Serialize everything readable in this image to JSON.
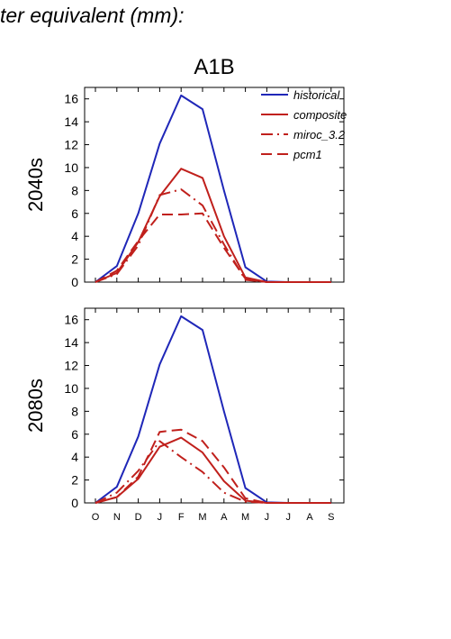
{
  "header": {
    "title": "ter equivalent (mm):"
  },
  "figure": {
    "title": "A1B"
  },
  "colors": {
    "historical": "#1f27b8",
    "future": "#c0201c"
  },
  "legend": [
    "historical",
    "composite",
    "miroc_3.2",
    "pcm1"
  ],
  "chart_data": [
    {
      "type": "line",
      "ylabel": "2040s",
      "categories": [
        "O",
        "N",
        "D",
        "J",
        "F",
        "M",
        "A",
        "M",
        "J",
        "J",
        "A",
        "S"
      ],
      "ylim": [
        0,
        17
      ],
      "yticks": [
        0,
        2,
        4,
        6,
        8,
        10,
        12,
        14,
        16
      ],
      "series": [
        {
          "name": "historical",
          "style": "solid",
          "values": [
            0,
            1.4,
            6.0,
            12.1,
            16.3,
            15.1,
            8.0,
            1.3,
            0.05,
            0,
            0,
            0
          ]
        },
        {
          "name": "composite",
          "style": "solid",
          "values": [
            0,
            0.8,
            3.5,
            7.5,
            9.9,
            9.1,
            4.0,
            0.4,
            0,
            0,
            0,
            0
          ]
        },
        {
          "name": "miroc_3.2",
          "style": "dashdot",
          "values": [
            0,
            0.7,
            3.2,
            7.6,
            8.1,
            6.7,
            3.3,
            0.2,
            0,
            0,
            0,
            0
          ]
        },
        {
          "name": "pcm1",
          "style": "longdash",
          "values": [
            0,
            1.0,
            3.6,
            5.9,
            5.9,
            6.0,
            3.0,
            0.3,
            0,
            0,
            0,
            0
          ]
        }
      ]
    },
    {
      "type": "line",
      "ylabel": "2080s",
      "categories": [
        "O",
        "N",
        "D",
        "J",
        "F",
        "M",
        "A",
        "M",
        "J",
        "J",
        "A",
        "S"
      ],
      "ylim": [
        0,
        17
      ],
      "yticks": [
        0,
        2,
        4,
        6,
        8,
        10,
        12,
        14,
        16
      ],
      "series": [
        {
          "name": "historical",
          "style": "solid",
          "values": [
            0,
            1.4,
            5.8,
            12.1,
            16.3,
            15.1,
            8.0,
            1.3,
            0.05,
            0,
            0,
            0
          ]
        },
        {
          "name": "composite",
          "style": "solid",
          "values": [
            0,
            0.5,
            2.1,
            4.9,
            5.7,
            4.4,
            1.9,
            0.2,
            0,
            0,
            0,
            0
          ]
        },
        {
          "name": "miroc_3.2",
          "style": "dashdot",
          "values": [
            0,
            0.9,
            2.8,
            5.4,
            4.0,
            2.7,
            0.9,
            0.1,
            0,
            0,
            0,
            0
          ]
        },
        {
          "name": "pcm1",
          "style": "longdash",
          "values": [
            0,
            0.5,
            2.3,
            6.2,
            6.4,
            5.4,
            3.1,
            0.4,
            0,
            0,
            0,
            0
          ]
        }
      ]
    }
  ]
}
